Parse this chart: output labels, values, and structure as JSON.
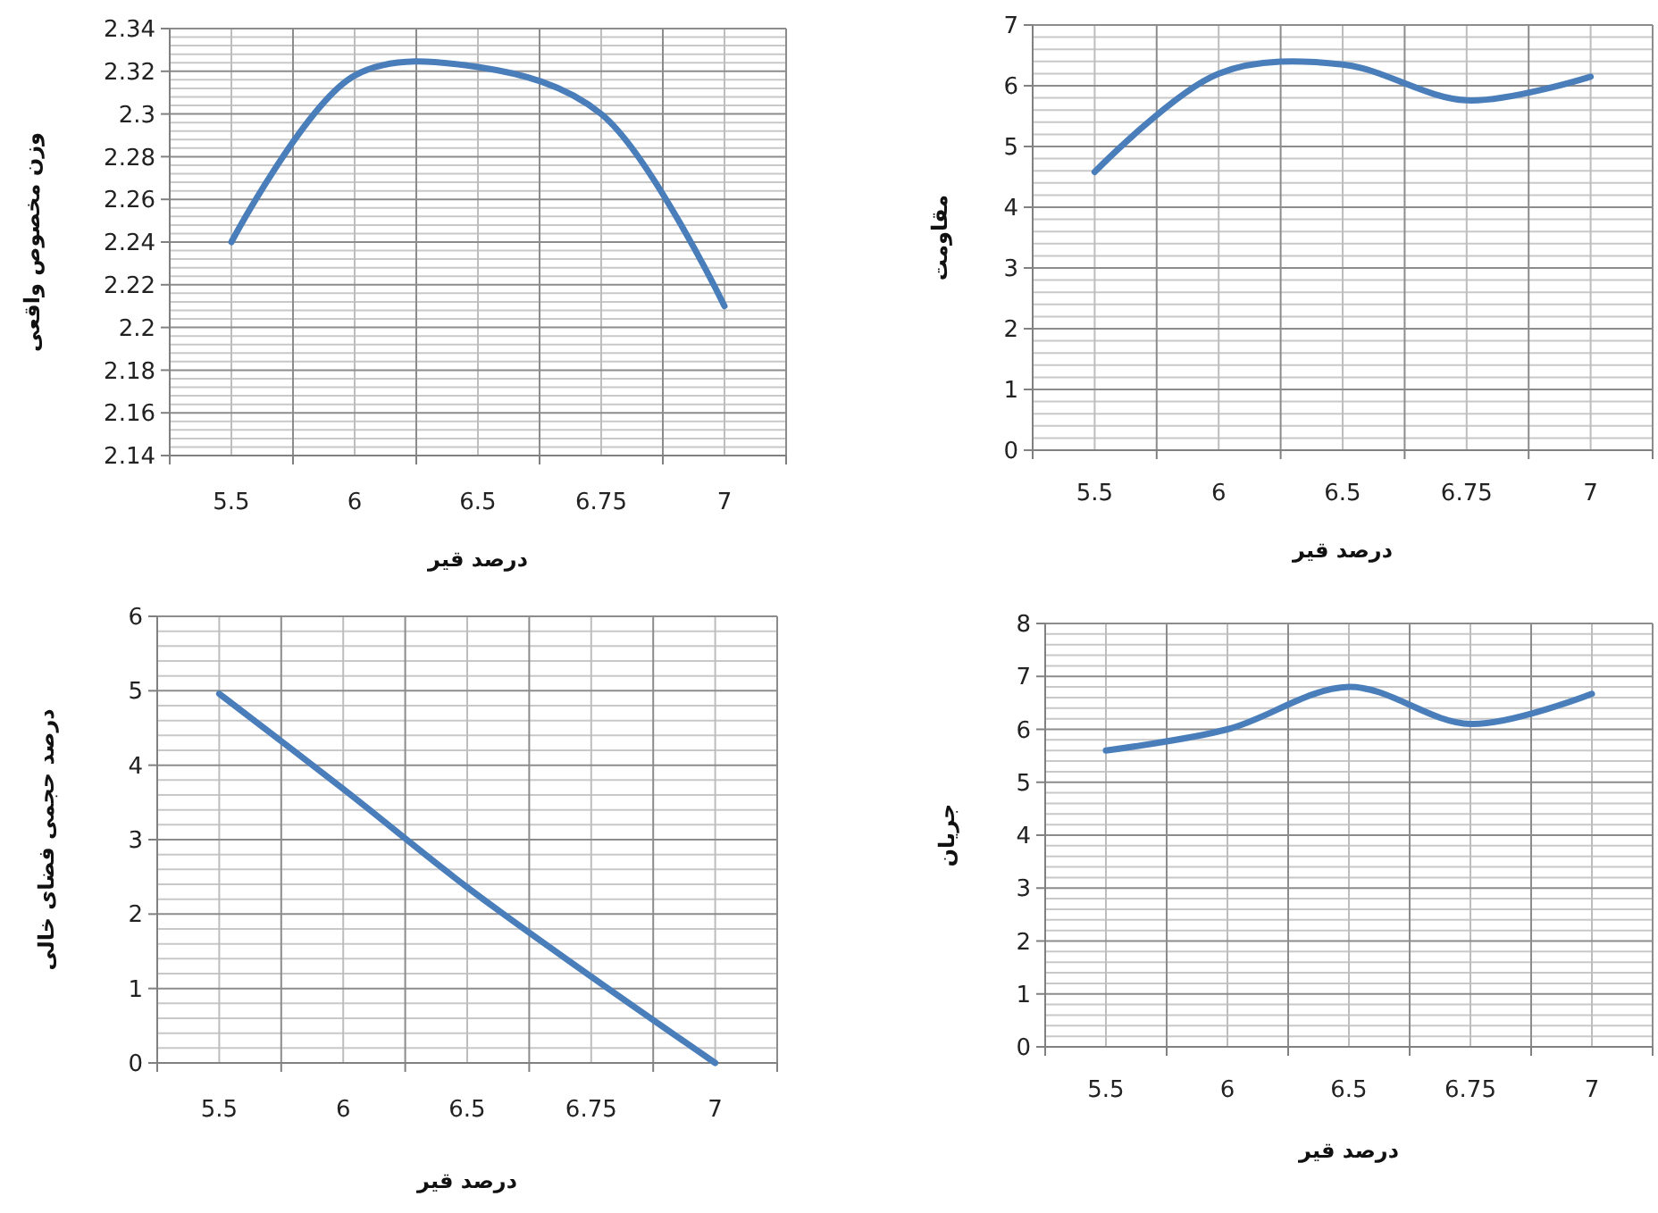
{
  "chart_data": [
    {
      "type": "line",
      "categories": [
        "5.5",
        "6",
        "6.5",
        "6.75",
        "7"
      ],
      "xlabel": "درصد قیر",
      "ylabel": "وزن مخصوص واقعی",
      "ylim": [
        2.14,
        2.34
      ],
      "yticks": [
        2.14,
        2.16,
        2.18,
        2.2,
        2.22,
        2.24,
        2.26,
        2.28,
        2.3,
        2.32,
        2.34
      ],
      "grid": true,
      "marker": "none",
      "series": [
        {
          "color": "#4a7ebb",
          "values": [
            2.24,
            2.318,
            2.322,
            2.3,
            2.21
          ]
        }
      ]
    },
    {
      "type": "line",
      "categories": [
        "5.5",
        "6",
        "6.5",
        "6.75",
        "7"
      ],
      "xlabel": "درصد قیر",
      "ylabel": "مقاومت",
      "ylim": [
        0,
        7
      ],
      "yticks": [
        0,
        1,
        2,
        3,
        4,
        5,
        6,
        7
      ],
      "grid": true,
      "marker": "none",
      "series": [
        {
          "color": "#4a7ebb",
          "values": [
            4.58,
            6.2,
            6.35,
            5.76,
            6.15
          ]
        }
      ]
    },
    {
      "type": "line",
      "categories": [
        "5.5",
        "6",
        "6.5",
        "6.75",
        "7"
      ],
      "xlabel": "درصد قیر",
      "ylabel": "درصد حجمی فضای خالی",
      "ylim": [
        0,
        6
      ],
      "yticks": [
        0,
        1,
        2,
        3,
        4,
        5,
        6
      ],
      "grid": true,
      "marker": "none",
      "series": [
        {
          "color": "#4a7ebb",
          "values": [
            4.96,
            3.68,
            2.36,
            1.16,
            0
          ]
        }
      ]
    },
    {
      "type": "line",
      "categories": [
        "5.5",
        "6",
        "6.5",
        "6.75",
        "7"
      ],
      "xlabel": "درصد قیر",
      "ylabel": "جریان",
      "ylim": [
        0,
        8
      ],
      "yticks": [
        0,
        1,
        2,
        3,
        4,
        5,
        6,
        7,
        8
      ],
      "grid": true,
      "marker": "none",
      "series": [
        {
          "color": "#4a7ebb",
          "values": [
            5.6,
            6.0,
            6.8,
            6.1,
            6.67
          ]
        }
      ]
    }
  ]
}
